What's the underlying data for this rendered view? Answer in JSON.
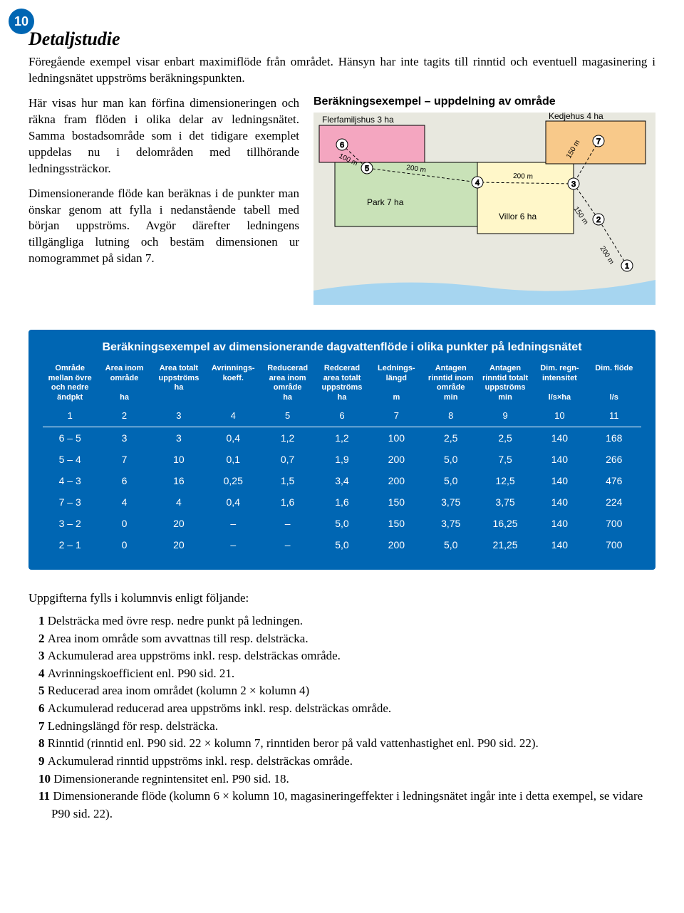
{
  "page_number": "10",
  "heading": "Detaljstudie",
  "intro": "Föregående exempel visar enbart maximiflöde från området. Hänsyn har inte tagits till rinntid och eventuell magasinering i ledningsnätet uppströms beräkningspunkten.",
  "left_para1": "Här visas hur man kan förfina dimensioneringen och räkna fram flöden i olika delar av ledningsnätet. Samma bostadsområde som i det tidigare exemplet uppdelas nu i delområden med tillhörande ledningssträckor.",
  "left_para2": "Dimensionerande flöde kan beräknas i de punkter man önskar genom att fylla i nedanstående tabell med början uppströms. Avgör därefter ledningens tillgängliga lutning och bestäm dimensionen ur nomogrammet på sidan 7.",
  "diagram": {
    "title": "Beräkningsexempel – uppdelning av område",
    "background": "#e8e8df",
    "water_color": "#a6d5f0",
    "flerfamiljshus": {
      "label": "Flerfamiljshus 3 ha",
      "fill": "#f4a6c0"
    },
    "park": {
      "label": "Park 7 ha",
      "fill": "#c9e2b8"
    },
    "kedjehus": {
      "label": "Kedjehus 4 ha",
      "fill": "#f8c98a"
    },
    "villor": {
      "label": "Villor 6 ha",
      "fill": "#fff7c9"
    },
    "seg_labels": [
      "100 m",
      "200 m",
      "200 m",
      "150 m",
      "150 m",
      "200 m"
    ],
    "nodes": [
      "1",
      "2",
      "3",
      "4",
      "5",
      "6",
      "7"
    ]
  },
  "table": {
    "title": "Beräkningsexempel av dimensionerande dagvattenflöde i olika punkter på ledningsnätet",
    "panel_bg": "#0066b3",
    "text_color": "#ffffff",
    "headers": [
      "Område mellan övre och nedre ändpkt",
      "Area inom område\n\nha",
      "Area totalt uppströms\nha",
      "Avrinnings-koeff.",
      "Reducerad area inom område\nha",
      "Redcerad area totalt uppströms\nha",
      "Lednings-längd\n\nm",
      "Antagen rinntid inom område\nmin",
      "Antagen rinntid totalt uppströms\nmin",
      "Dim. regn-intensitet\n\nl/s×ha",
      "Dim. flöde\n\n\nl/s"
    ],
    "col_numbers": [
      "1",
      "2",
      "3",
      "4",
      "5",
      "6",
      "7",
      "8",
      "9",
      "10",
      "11"
    ],
    "rows": [
      [
        "6 – 5",
        "3",
        "3",
        "0,4",
        "1,2",
        "1,2",
        "100",
        "2,5",
        "2,5",
        "140",
        "168"
      ],
      [
        "5 – 4",
        "7",
        "10",
        "0,1",
        "0,7",
        "1,9",
        "200",
        "5,0",
        "7,5",
        "140",
        "266"
      ],
      [
        "4 – 3",
        "6",
        "16",
        "0,25",
        "1,5",
        "3,4",
        "200",
        "5,0",
        "12,5",
        "140",
        "476"
      ],
      [
        "7 – 3",
        "4",
        "4",
        "0,4",
        "1,6",
        "1,6",
        "150",
        "3,75",
        "3,75",
        "140",
        "224"
      ],
      [
        "3 – 2",
        "0",
        "20",
        "–",
        "–",
        "5,0",
        "150",
        "3,75",
        "16,25",
        "140",
        "700"
      ],
      [
        "2 – 1",
        "0",
        "20",
        "–",
        "–",
        "5,0",
        "200",
        "5,0",
        "21,25",
        "140",
        "700"
      ]
    ]
  },
  "footer": {
    "heading": "Uppgifterna fylls i kolumnvis enligt följande:",
    "items": [
      {
        "num": "1",
        "text": "Delsträcka med övre resp. nedre punkt på ledningen."
      },
      {
        "num": "2",
        "text": "Area inom område som avvattnas till resp. delsträcka."
      },
      {
        "num": "3",
        "text": "Ackumulerad area uppströms inkl. resp. delsträckas område."
      },
      {
        "num": "4",
        "text": "Avrinningskoefficient enl. P90 sid. 21."
      },
      {
        "num": "5",
        "text": "Reducerad area inom området (kolumn 2 × kolumn 4)"
      },
      {
        "num": "6",
        "text": "Ackumulerad reducerad area uppströms inkl. resp. delsträckas område."
      },
      {
        "num": "7",
        "text": "Ledningslängd för resp. delsträcka."
      },
      {
        "num": "8",
        "text": "Rinntid (rinntid enl. P90 sid. 22 × kolumn 7, rinntiden beror på vald vattenhastighet enl. P90 sid. 22)."
      },
      {
        "num": "9",
        "text": "Ackumulerad rinntid uppströms inkl. resp. delsträckas område."
      },
      {
        "num": "10",
        "text": "Dimensionerande regnintensitet enl. P90 sid. 18."
      },
      {
        "num": "11",
        "text": "Dimensionerande flöde (kolumn 6 × kolumn 10, magasineringeffekter i ledningsnätet ingår inte i detta exempel, se vidare P90 sid. 22)."
      }
    ]
  }
}
